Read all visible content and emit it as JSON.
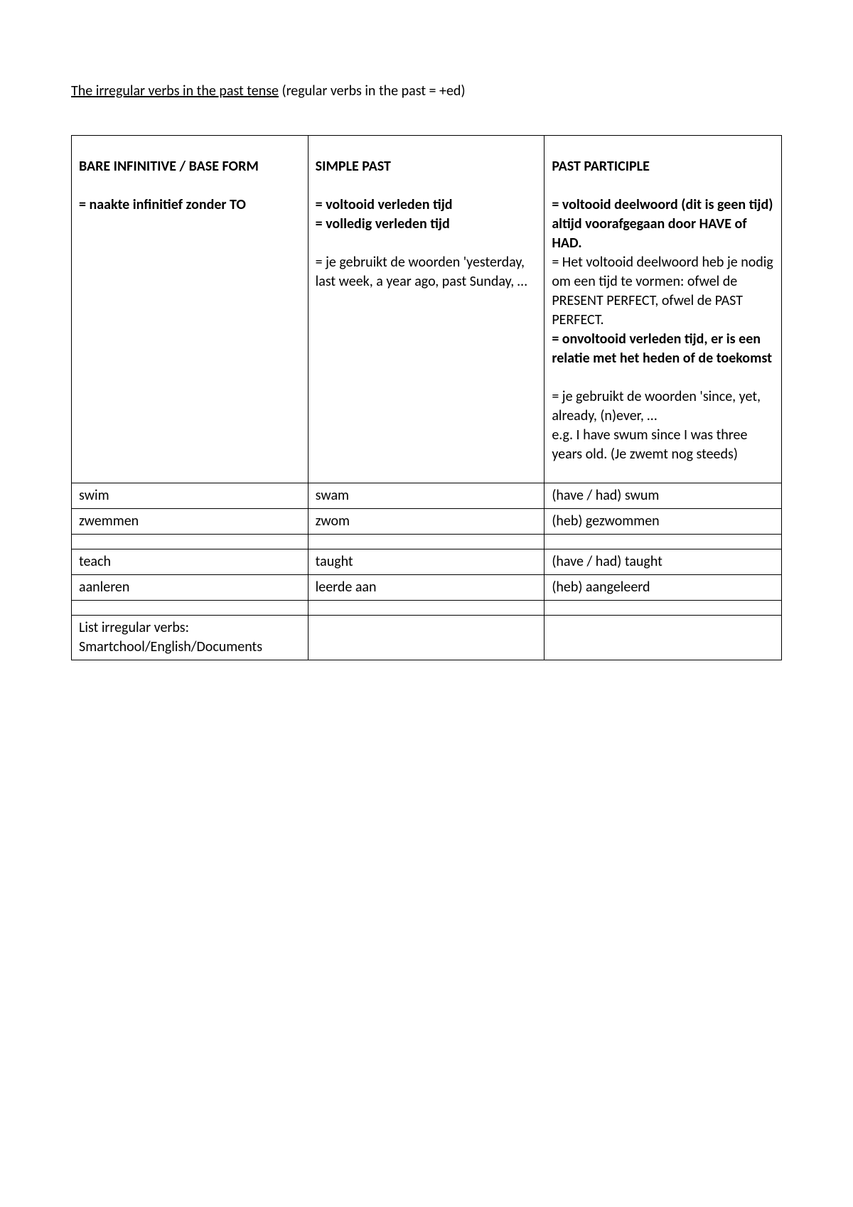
{
  "page_title": {
    "underlined": "The irregular verbs in the past tense",
    "plain": " (regular verbs in the past = +ed)"
  },
  "table": {
    "header": {
      "col1": {
        "title": "BARE INFINITIVE / BASE FORM",
        "sub": "= naakte infinitief zonder TO"
      },
      "col2": {
        "title": "SIMPLE PAST",
        "sub_bold1": "= voltooid verleden tijd",
        "sub_bold2": "= volledig verleden tijd",
        "desc1": "= je gebruikt de woorden 'yesterday, last week, a year ago, past Sunday, …"
      },
      "col3": {
        "title": "PAST PARTICIPLE",
        "sub_bold1": "= voltooid deelwoord (dit is geen tijd) altijd voorafgegaan door HAVE of HAD.",
        "desc1": "= Het voltooid deelwoord heb je nodig om een tijd te vormen: ofwel de PRESENT PERFECT, ofwel de PAST PERFECT.",
        "sub_bold2": "= onvoltooid verleden tijd, er is een relatie met het heden of de toekomst",
        "desc2": "= je gebruikt de woorden 'since, yet, already, (n)ever, …",
        "desc3": "e.g. I have swum since I was three years old. (Je zwemt nog steeds)"
      }
    },
    "rows": [
      {
        "c1": "swim",
        "c2": "swam",
        "c3": "(have / had) swum"
      },
      {
        "c1": "zwemmen",
        "c2": "zwom",
        "c3": "(heb) gezwommen"
      },
      {
        "empty": true
      },
      {
        "c1": "teach",
        "c2": "taught",
        "c3": "(have / had) taught"
      },
      {
        "c1": "aanleren",
        "c2": "leerde aan",
        "c3": "(heb) aangeleerd"
      },
      {
        "empty": true
      },
      {
        "c1_line1": "List irregular verbs:",
        "c1_line2": "Smartchool/English/Documents",
        "c2": "",
        "c3": ""
      }
    ]
  }
}
